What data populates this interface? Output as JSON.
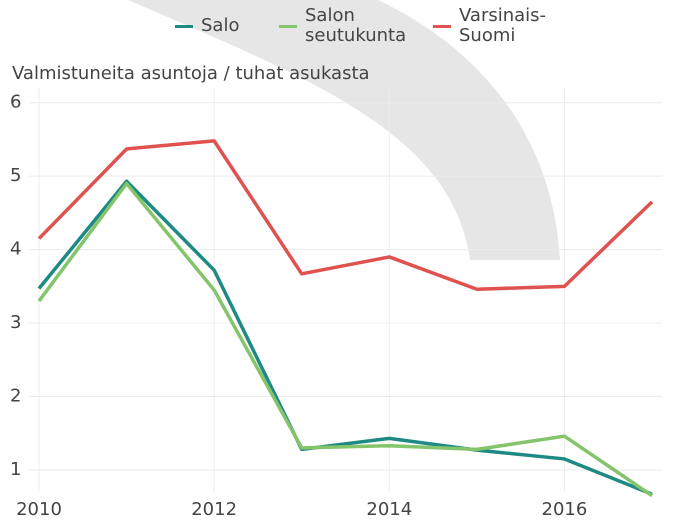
{
  "chart_data": {
    "type": "line",
    "y_label": "Valmistuneita asuntoja / tuhat asukasta",
    "x": [
      2010,
      2011,
      2012,
      2013,
      2014,
      2015,
      2016,
      2017
    ],
    "xlim": [
      2010,
      2017
    ],
    "xticks": [
      2010,
      2012,
      2014,
      2016
    ],
    "ylim": [
      0.7,
      6.2
    ],
    "yticks": [
      1,
      2,
      3,
      4,
      5,
      6
    ],
    "grid": true,
    "legend": "top",
    "series": [
      {
        "name": "Salo",
        "color": "#1f8a84",
        "values": [
          3.47,
          4.93,
          3.72,
          1.28,
          1.43,
          1.27,
          1.15,
          0.67
        ]
      },
      {
        "name": "Salon seutukunta",
        "color": "#84c46b",
        "values": [
          3.3,
          4.9,
          3.45,
          1.3,
          1.33,
          1.28,
          1.46,
          0.65
        ]
      },
      {
        "name": "Varsinais-Suomi",
        "color": "#e0524f",
        "values": [
          4.15,
          5.37,
          5.48,
          3.67,
          3.9,
          3.46,
          3.5,
          4.65
        ]
      }
    ]
  }
}
